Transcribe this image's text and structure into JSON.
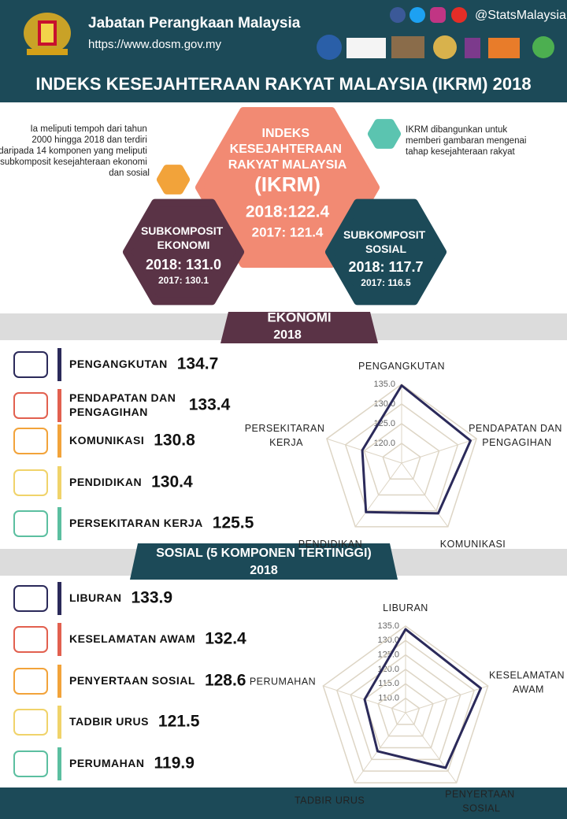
{
  "header": {
    "org": "Jabatan Perangkaan Malaysia",
    "url": "https://www.dosm.gov.my",
    "handle": "@StatsMalaysia"
  },
  "title": "INDEKS KESEJAHTERAAN RAKYAT MALAYSIA (IKRM) 2018",
  "summary": {
    "left_note": "Ia meliputi tempoh dari tahun 2000 hingga 2018 dan terdiri daripada 14 komponen yang meliputi subkomposit kesejahteraan ekonomi dan sosial",
    "right_note": "IKRM dibangunkan untuk memberi gambaran mengenai tahap kesejahteraan rakyat",
    "index": {
      "label": "INDEKS KESEJAHTERAAN RAKYAT MALAYSIA",
      "abbr": "(IKRM)",
      "current": "2018:122.4",
      "previous": "2017: 121.4"
    },
    "ekonomi": {
      "label": "SUBKOMPOSIT EKONOMI",
      "current": "2018: 131.0",
      "previous": "2017: 130.1"
    },
    "sosial": {
      "label": "SUBKOMPOSIT SOSIAL",
      "current": "2018: 117.7",
      "previous": "2017: 116.5"
    }
  },
  "sections": [
    {
      "title": "EKONOMI",
      "year": "2018"
    },
    {
      "title": "SOSIAL (5 KOMPONEN TERTINGGI)",
      "year": "2018"
    }
  ],
  "chart_data": [
    {
      "type": "radar",
      "categories": [
        "PENGANGKUTAN",
        "PENDAPATAN DAN PENGAGIHAN",
        "KOMUNIKASI",
        "PENDIDIKAN",
        "PERSEKITARAN KERJA"
      ],
      "values": [
        134.7,
        133.4,
        130.8,
        130.4,
        125.5
      ],
      "color": "#2b2a5a",
      "rlim": [
        115,
        135
      ],
      "rticks": [
        {
          "value": 120,
          "label": "120.0"
        },
        {
          "value": 125,
          "label": "125.0"
        },
        {
          "value": 130,
          "label": "130.0"
        },
        {
          "value": 135,
          "label": "135.0"
        }
      ],
      "grid": true
    },
    {
      "type": "radar",
      "categories": [
        "LIBURAN",
        "KESELAMATAN AWAM",
        "PENYERTAAN SOSIAL",
        "TADBIR URUS",
        "PERUMAHAN"
      ],
      "values": [
        133.9,
        132.4,
        128.6,
        121.5,
        119.9
      ],
      "color": "#2b2a5a",
      "rlim": [
        105,
        135
      ],
      "rticks": [
        {
          "value": 110,
          "label": "110.0"
        },
        {
          "value": 115,
          "label": "115.0"
        },
        {
          "value": 120,
          "label": "120.0"
        },
        {
          "value": 125,
          "label": "125.0"
        },
        {
          "value": 130,
          "label": "130.0"
        },
        {
          "value": 135,
          "label": "135.0"
        }
      ],
      "grid": true
    }
  ]
}
